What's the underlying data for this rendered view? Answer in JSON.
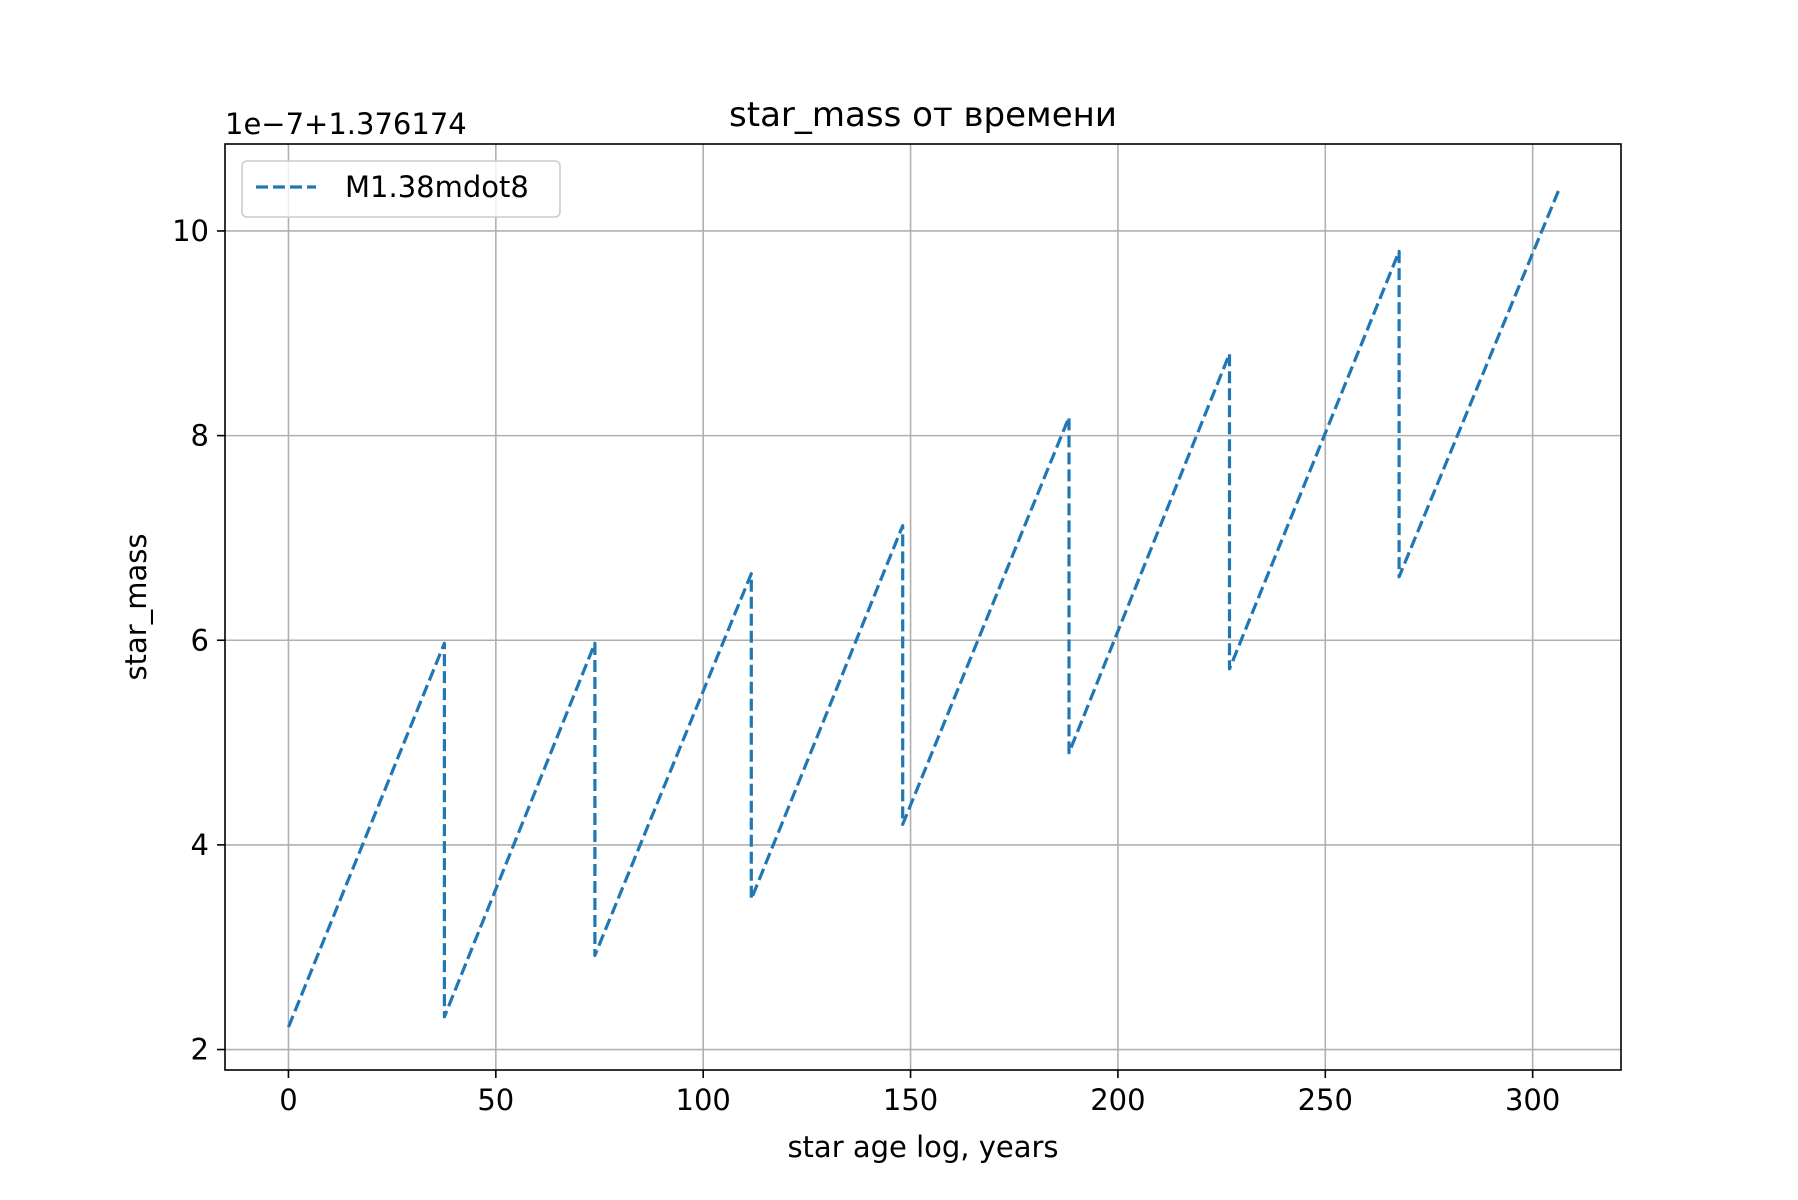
{
  "chart_data": {
    "type": "line",
    "title": "star_mass от времени",
    "xlabel": "star age log, years",
    "ylabel": "star_mass",
    "offset_text": "1e−7+1.376174",
    "xlim": [
      -15.3,
      321.3
    ],
    "ylim": [
      1.8,
      10.85
    ],
    "xticks": [
      0,
      50,
      100,
      150,
      200,
      250,
      300
    ],
    "xtick_labels": [
      "0",
      "50",
      "100",
      "150",
      "200",
      "250",
      "300"
    ],
    "yticks": [
      2,
      4,
      6,
      8,
      10
    ],
    "ytick_labels": [
      "2",
      "4",
      "6",
      "8",
      "10"
    ],
    "grid": true,
    "legend_position": "top-left",
    "series": [
      {
        "name": "M1.38mdot8",
        "color": "#1f77b4",
        "line_style": "dashed",
        "x": [
          0,
          37.6,
          37.6,
          73.9,
          73.9,
          111.6,
          111.6,
          148.1,
          148.1,
          188.2,
          188.2,
          226.9,
          226.9,
          267.8,
          267.8,
          306.3
        ],
        "y": [
          2.22,
          5.97,
          2.32,
          5.97,
          2.92,
          6.65,
          3.47,
          7.12,
          4.2,
          8.18,
          4.9,
          8.8,
          5.72,
          9.8,
          6.62,
          10.4
        ]
      }
    ]
  }
}
